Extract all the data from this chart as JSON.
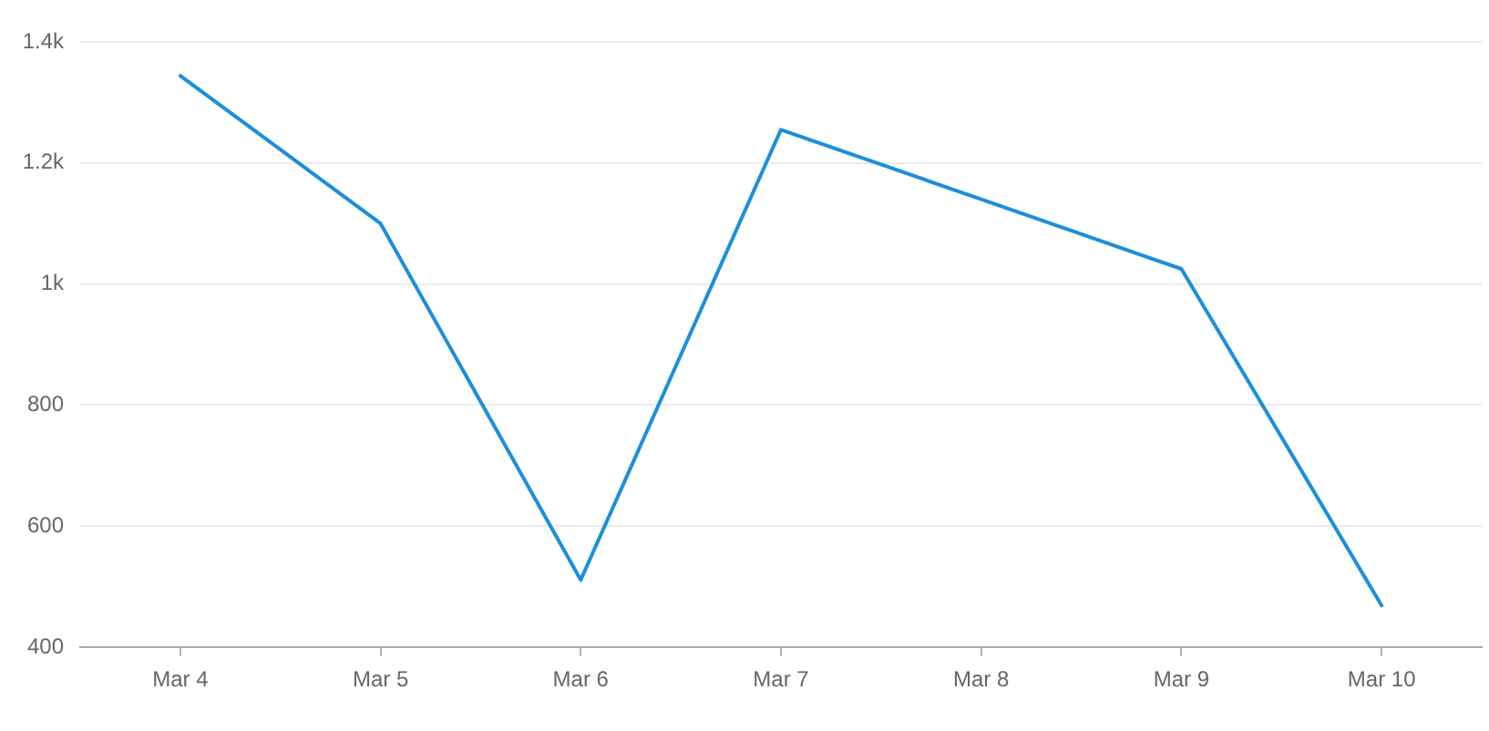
{
  "chart_data": {
    "type": "line",
    "categories": [
      "Mar 4",
      "Mar 5",
      "Mar 6",
      "Mar 7",
      "Mar 8",
      "Mar 9",
      "Mar 10"
    ],
    "values": [
      1344,
      1100,
      511,
      1255,
      1140,
      1025,
      469
    ],
    "color": "#1b8fdb",
    "ylim": [
      400,
      1400
    ],
    "yticks": [
      400,
      600,
      800,
      {
        "value": 1000,
        "label": "1k"
      },
      {
        "value": 1200,
        "label": "1.2k"
      },
      {
        "value": 1400,
        "label": "1.4k"
      }
    ],
    "grid": "y",
    "marker": "none",
    "line_style": "solid"
  }
}
